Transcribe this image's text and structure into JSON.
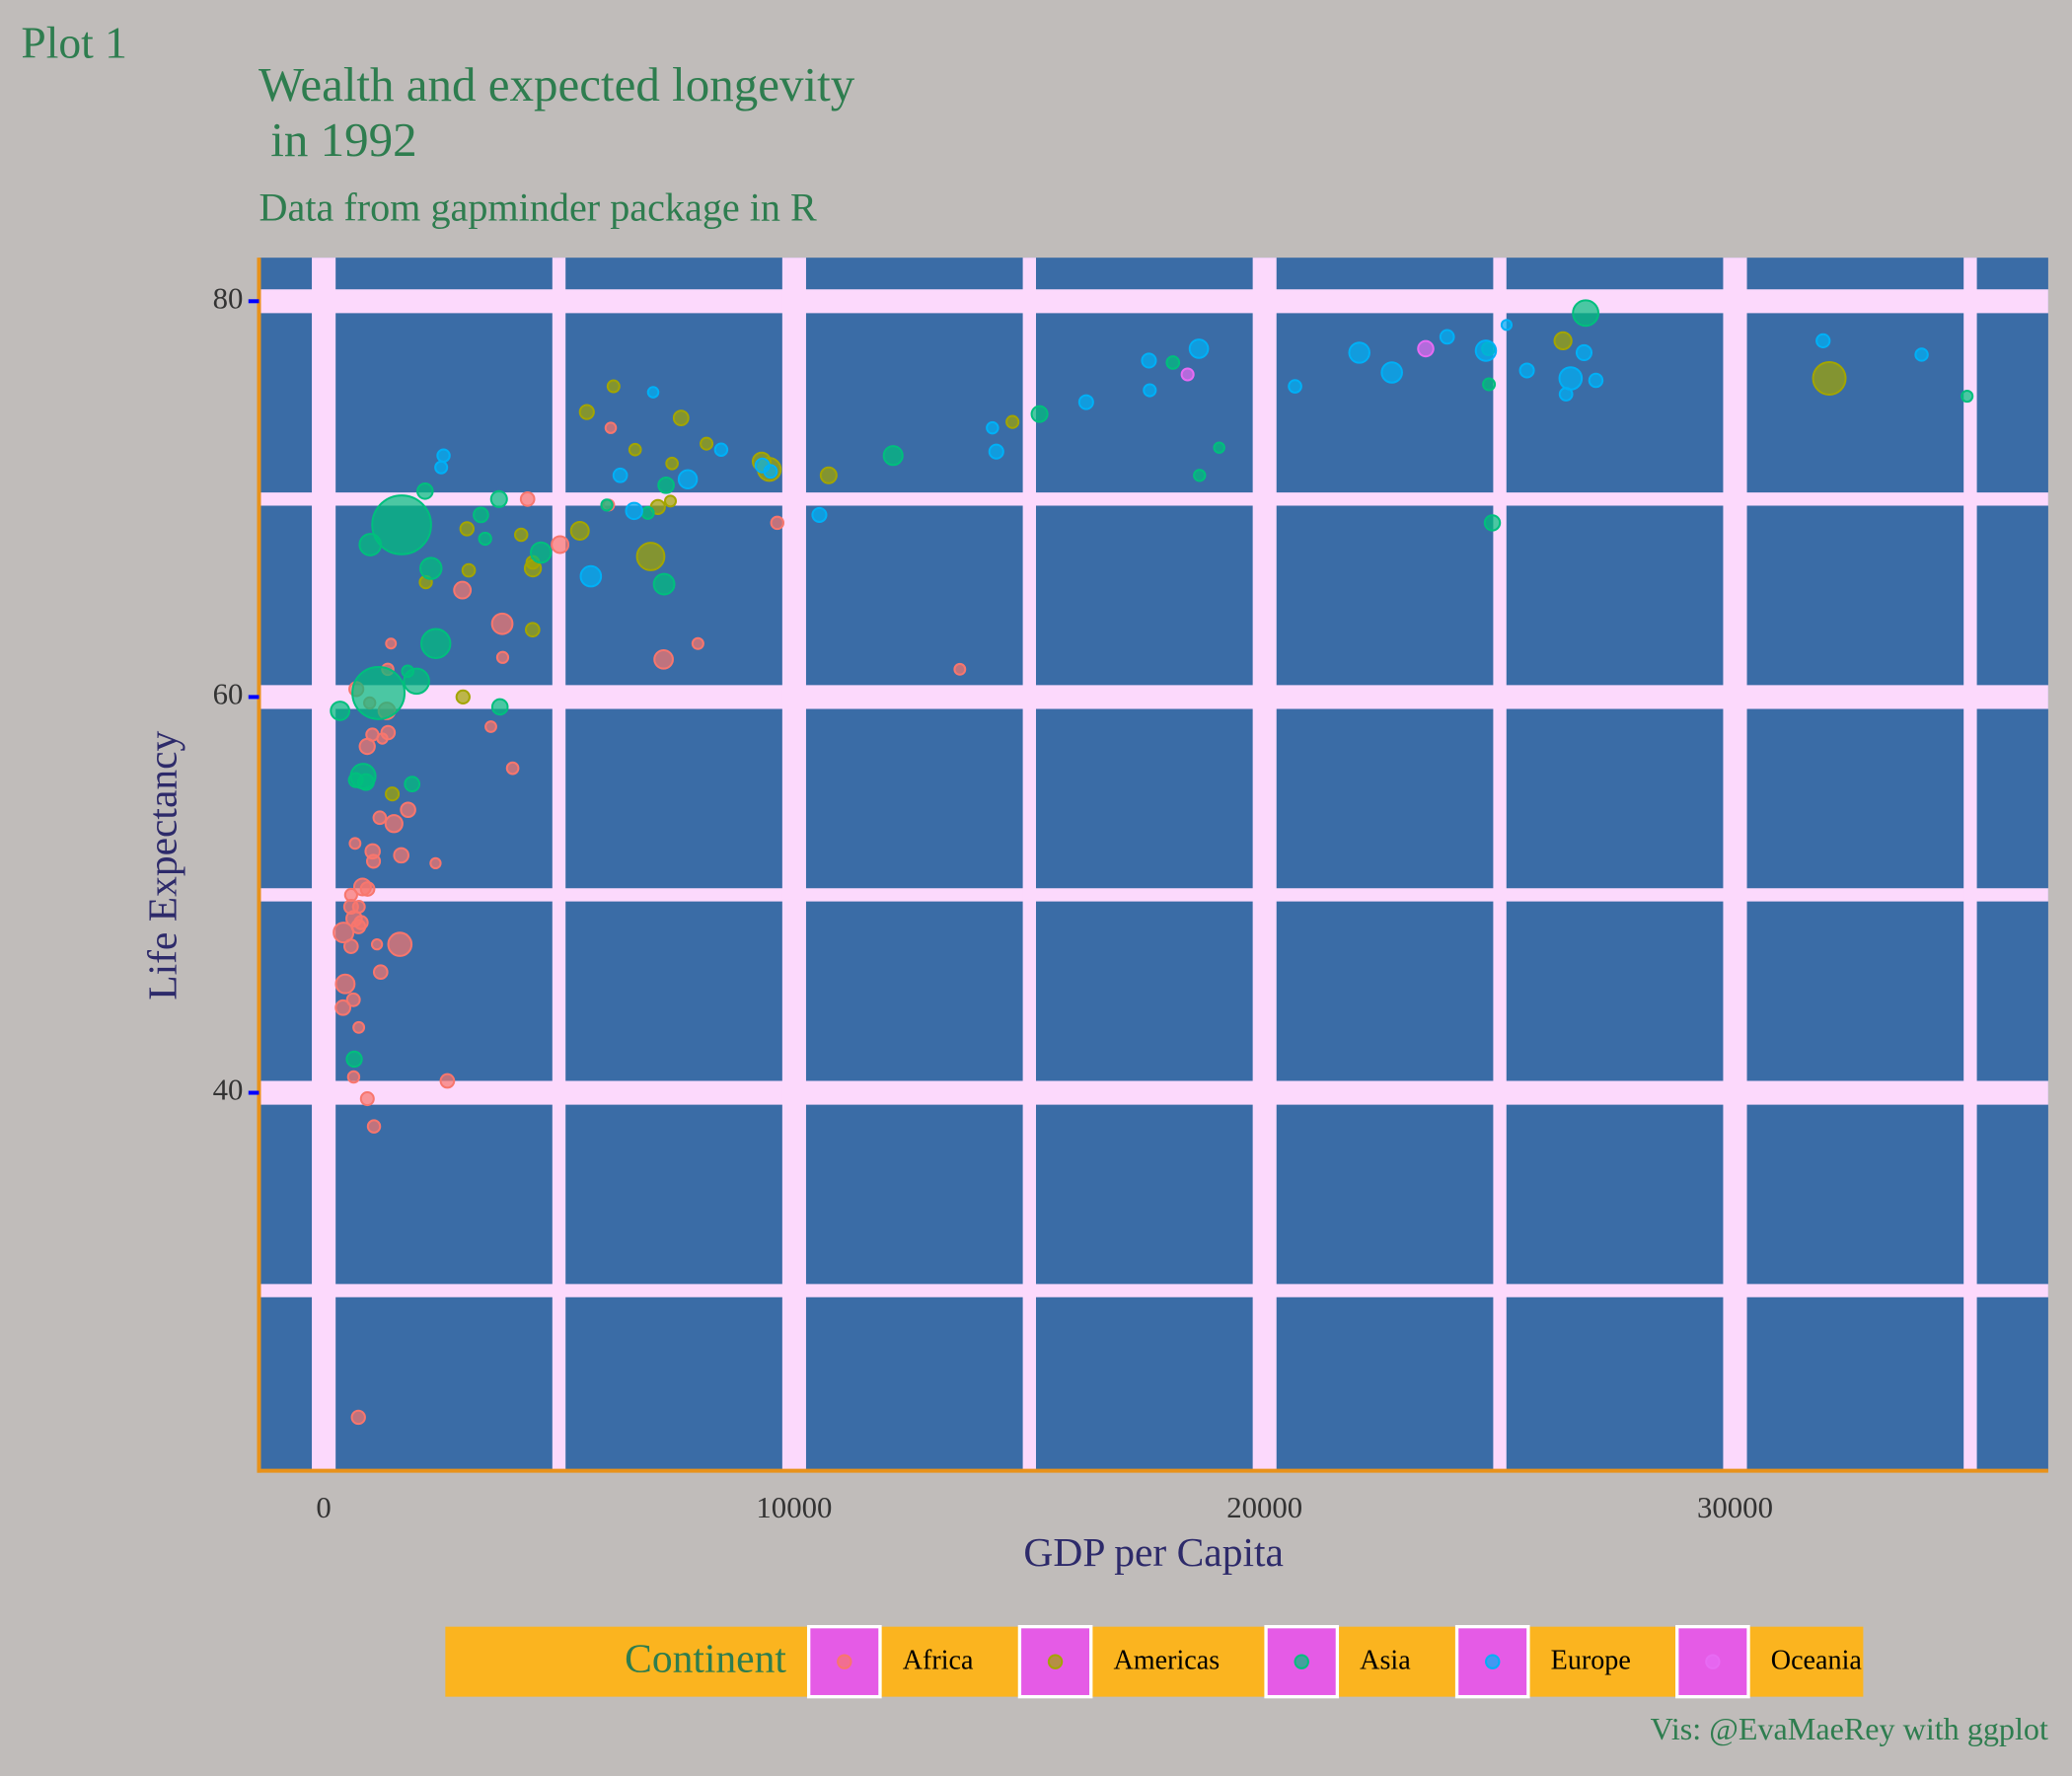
{
  "chart_data": {
    "type": "scatter",
    "tag": "Plot 1",
    "title": "Wealth and expected longevity\n in 1992",
    "subtitle": "Data from gapminder package in R",
    "x_label": "GDP per Capita",
    "y_label": "Life Expectancy",
    "caption": "Vis: @EvaMaeRey with ggplot",
    "legend_title": "Continent",
    "xlim": [
      -1376,
      36657
    ],
    "ylim": [
      20.9,
      82.2
    ],
    "xticks": [
      0,
      10000,
      20000,
      30000
    ],
    "yticks": [
      40,
      60,
      80
    ],
    "xminor": [
      5000,
      15000,
      25000,
      35000
    ],
    "yminor": [
      30,
      50,
      70
    ],
    "grid": true,
    "legend": "bottom",
    "series": [
      {
        "name": "Africa",
        "color": "#F8766D",
        "x": [
          5023,
          2628,
          1191,
          7954,
          932,
          631,
          1793,
          747,
          1058,
          1246,
          457,
          4016,
          1648,
          2377,
          3795,
          1132,
          582,
          421,
          13522,
          666,
          925,
          795,
          745,
          1341,
          977,
          636,
          9641,
          1040,
          582,
          739,
          1361,
          6058,
          2948,
          410,
          3804,
          581,
          1619,
          6101,
          737,
          1429,
          1368,
          1068,
          927,
          7225,
          1493,
          3553,
          825,
          1034,
          4333,
          645,
          1210,
          693
        ],
        "values": [
          67.7,
          40.6,
          53.9,
          62.7,
          50.3,
          44.7,
          54.3,
          49.4,
          51.7,
          57.9,
          45.5,
          56.4,
          52.0,
          51.6,
          63.7,
          47.5,
          50.0,
          48.1,
          61.4,
          52.6,
          57.5,
          48.6,
          43.3,
          59.3,
          59.7,
          40.8,
          68.8,
          52.2,
          49.4,
          48.4,
          61.4,
          69.7,
          65.4,
          44.3,
          62.0,
          47.4,
          47.5,
          73.6,
          23.6,
          62.7,
          58.2,
          38.3,
          39.7,
          61.9,
          53.6,
          58.5,
          50.4,
          58.1,
          70.0,
          48.8,
          46.1,
          60.4
        ],
        "sizes": [
          26.3,
          8.7,
          5.0,
          1.3,
          8.9,
          5.8,
          12.5,
          3.1,
          6.4,
          0.45,
          41.7,
          2.4,
          12.5,
          0.38,
          59.4,
          0.39,
          3.7,
          52.1,
          0.98,
          1.0,
          16.3,
          7.0,
          1.05,
          25.0,
          1.8,
          1.9,
          4.4,
          12.2,
          10.0,
          8.4,
          2.1,
          1.1,
          25.8,
          13.2,
          1.6,
          8.4,
          93.4,
          0.62,
          7.3,
          0.13,
          8.3,
          4.3,
          6.1,
          40.0,
          28.2,
          0.96,
          26.6,
          4.0,
          8.5,
          18.3,
          8.4,
          10.7
        ]
      },
      {
        "name": "Americas",
        "color": "#A3A500",
        "x": [
          9308,
          2961,
          6950,
          26343,
          7596,
          5445,
          6160,
          5593,
          3045,
          7103,
          4444,
          4440,
          1457,
          3082,
          7404,
          9472,
          2170,
          6619,
          4197,
          4446,
          14641,
          7370,
          32004,
          8137,
          10733
        ],
        "values": [
          71.9,
          60.0,
          67.1,
          78.0,
          74.1,
          68.4,
          75.7,
          74.4,
          68.5,
          69.6,
          66.8,
          63.4,
          55.1,
          66.4,
          71.8,
          71.5,
          65.8,
          72.5,
          68.2,
          66.5,
          73.9,
          69.9,
          76.1,
          72.8,
          71.2
        ],
        "sizes": [
          34.0,
          6.9,
          156.0,
          28.5,
          13.6,
          34.2,
          3.2,
          10.7,
          7.4,
          10.7,
          5.3,
          8.5,
          6.3,
          5.1,
          2.4,
          88.1,
          4.0,
          2.5,
          4.5,
          22.4,
          3.6,
          1.2,
          256.9,
          3.2,
          20.3
        ]
      },
      {
        "name": "Asia",
        "color": "#00BF7D",
        "x": [
          649,
          19035,
          838,
          682,
          1656,
          24758,
          1164,
          2383,
          7235,
          3746,
          18051,
          26825,
          3431,
          3726,
          12104,
          34933,
          6890,
          7278,
          1785,
          347,
          898,
          18617,
          1972,
          2279,
          24841,
          24769,
          2154,
          3341,
          15216,
          4617,
          989,
          6018,
          1879
        ],
        "values": [
          41.7,
          72.6,
          56.0,
          55.8,
          68.7,
          77.6,
          60.2,
          62.7,
          65.7,
          59.5,
          76.9,
          79.4,
          68.0,
          70.0,
          72.2,
          75.2,
          69.3,
          70.7,
          61.3,
          59.3,
          55.7,
          71.2,
          60.8,
          66.5,
          68.8,
          75.8,
          70.4,
          69.2,
          74.3,
          67.3,
          67.7,
          69.7,
          55.6
        ],
        "sizes": [
          16.3,
          0.53,
          113.7,
          10.2,
          1165.0,
          5.7,
          872.0,
          184.8,
          60.4,
          17.9,
          4.9,
          124.3,
          3.9,
          20.7,
          43.8,
          1.4,
          3.2,
          18.3,
          2.3,
          40.5,
          20.3,
          1.9,
          120.0,
          67.2,
          16.9,
          3.2,
          17.6,
          13.2,
          20.7,
          56.7,
          69.9,
          1.6,
          13.4
        ]
      },
      {
        "name": "Europe",
        "color": "#00B0F6",
        "x": [
          2497,
          27042,
          25576,
          2547,
          6303,
          8448,
          14297,
          26407,
          20647,
          24704,
          26505,
          17541,
          10536,
          25144,
          17559,
          22014,
          7003,
          26791,
          33966,
          7739,
          16207,
          6598,
          9325,
          9498,
          14215,
          18603,
          23880,
          31872,
          5678,
          22705
        ],
        "values": [
          71.6,
          76.0,
          76.5,
          72.2,
          71.2,
          72.5,
          72.4,
          75.3,
          75.7,
          77.5,
          76.1,
          77.0,
          69.2,
          78.8,
          75.5,
          77.4,
          75.4,
          77.4,
          77.3,
          71.0,
          74.9,
          69.4,
          71.7,
          71.4,
          73.6,
          77.6,
          78.2,
          78.0,
          66.1,
          76.4
        ],
        "sizes": [
          3.3,
          7.9,
          10.0,
          4.3,
          8.7,
          4.5,
          10.3,
          5.2,
          5.0,
          57.4,
          80.6,
          10.3,
          10.3,
          0.26,
          3.6,
          56.8,
          0.62,
          15.2,
          4.3,
          38.4,
          9.9,
          22.8,
          9.8,
          5.3,
          2.0,
          39.5,
          8.7,
          7.0,
          58.2,
          57.9
        ]
      },
      {
        "name": "Oceania",
        "color": "#E76BF3",
        "x": [
          23425,
          18363
        ],
        "values": [
          77.6,
          76.3
        ],
        "sizes": [
          17.5,
          3.4
        ]
      }
    ]
  }
}
